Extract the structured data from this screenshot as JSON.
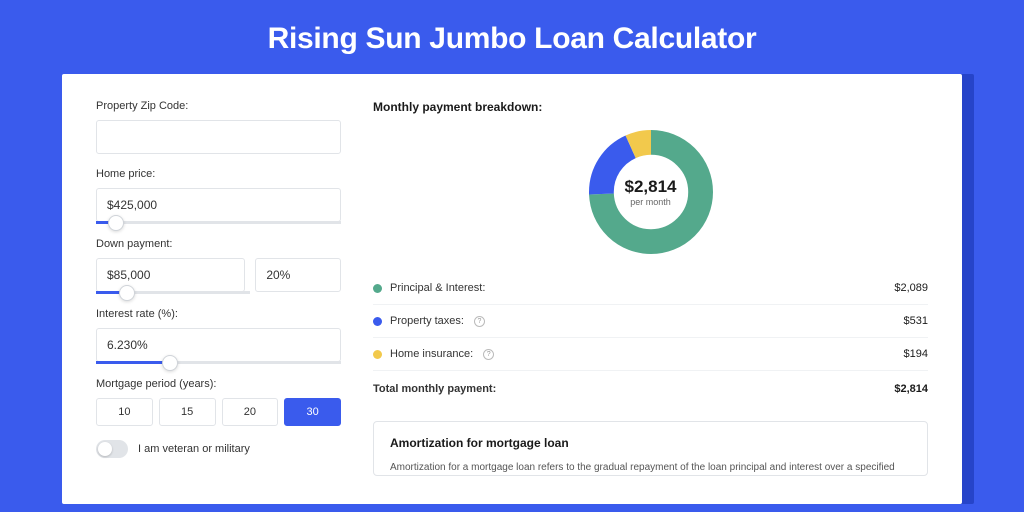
{
  "page": {
    "title": "Rising Sun Jumbo Loan Calculator",
    "background_color": "#3a5bed",
    "accent_shadow": "#2644c9"
  },
  "form": {
    "zip": {
      "label": "Property Zip Code:",
      "value": ""
    },
    "home_price": {
      "label": "Home price:",
      "value": "$425,000",
      "slider_pct": 8
    },
    "down_payment": {
      "label": "Down payment:",
      "amount": "$85,000",
      "percent": "20%",
      "slider_pct": 20
    },
    "interest_rate": {
      "label": "Interest rate (%):",
      "value": "6.230%",
      "slider_pct": 30
    },
    "period": {
      "label": "Mortgage period (years):",
      "options": [
        "10",
        "15",
        "20",
        "30"
      ],
      "selected": "30"
    },
    "veteran": {
      "label": "I am veteran or military",
      "value": false
    }
  },
  "breakdown": {
    "title": "Monthly payment breakdown:",
    "total_amount": "$2,814",
    "total_sub": "per month",
    "donut": {
      "segments": [
        {
          "key": "principal_interest",
          "value": 2089,
          "color": "#54a98c"
        },
        {
          "key": "property_taxes",
          "value": 531,
          "color": "#3a5bed"
        },
        {
          "key": "home_insurance",
          "value": 194,
          "color": "#f2c94c"
        }
      ],
      "stroke_width": 20
    },
    "rows": [
      {
        "label": "Principal & Interest:",
        "color": "#54a98c",
        "value": "$2,089",
        "info": false
      },
      {
        "label": "Property taxes:",
        "color": "#3a5bed",
        "value": "$531",
        "info": true
      },
      {
        "label": "Home insurance:",
        "color": "#f2c94c",
        "value": "$194",
        "info": true
      }
    ],
    "total_row": {
      "label": "Total monthly payment:",
      "value": "$2,814"
    }
  },
  "amortization": {
    "title": "Amortization for mortgage loan",
    "text": "Amortization for a mortgage loan refers to the gradual repayment of the loan principal and interest over a specified"
  }
}
